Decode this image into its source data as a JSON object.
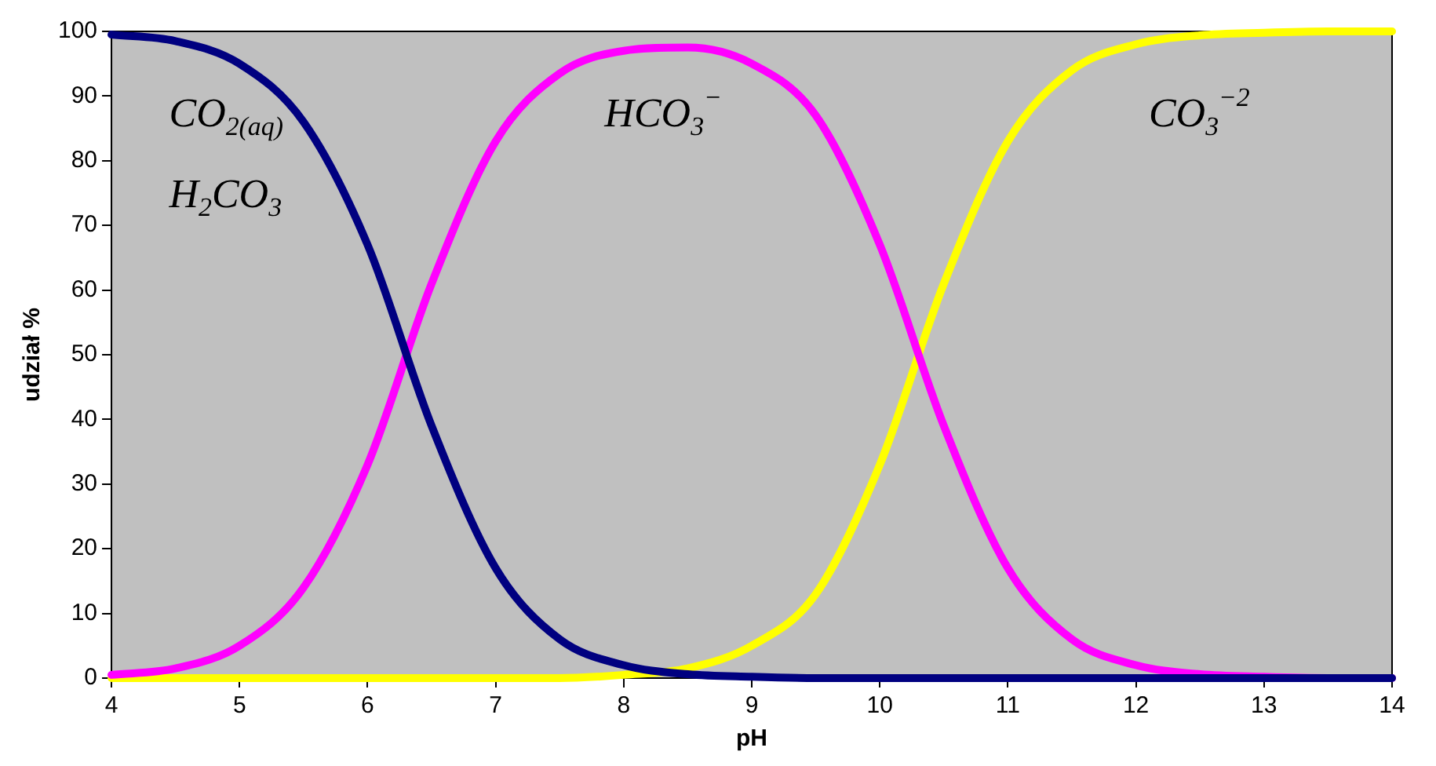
{
  "chart_data": {
    "type": "line",
    "xlabel": "pH",
    "ylabel": "udział %",
    "x": [
      4,
      4.5,
      5,
      5.5,
      6,
      6.5,
      7,
      7.5,
      8,
      8.5,
      9,
      9.5,
      10,
      10.5,
      11,
      11.5,
      12,
      12.5,
      13,
      13.5,
      14
    ],
    "series": [
      {
        "color": "#000080",
        "values": [
          99.5,
          98.5,
          95,
          86,
          67,
          39,
          17,
          6,
          2,
          0.6,
          0.2,
          0,
          0,
          0,
          0,
          0,
          0,
          0,
          0,
          0,
          0
        ]
      },
      {
        "color": "#ff00ff",
        "values": [
          0.5,
          1.5,
          5,
          14,
          33,
          61,
          83,
          93.5,
          97,
          97.5,
          95,
          87,
          67,
          39,
          17,
          6,
          2,
          0.6,
          0.2,
          0,
          0
        ]
      },
      {
        "color": "#ffff00",
        "values": [
          0,
          0,
          0,
          0,
          0,
          0,
          0,
          0,
          0.5,
          1.5,
          5,
          13,
          33,
          61,
          83,
          94,
          98,
          99.4,
          99.8,
          100,
          100
        ]
      }
    ],
    "annotations": [
      "CO$_{2(aq)}$",
      "H$_{2}$CO$_{3}$",
      "HCO$_{3}$$^{−}$",
      "CO$_{3}$$^{−2}$"
    ],
    "xlim": [
      4,
      14
    ],
    "xticks": [
      4,
      5,
      6,
      7,
      8,
      9,
      10,
      11,
      12,
      13,
      14
    ],
    "ylim": [
      0,
      100
    ],
    "yticks": [
      0,
      10,
      20,
      30,
      40,
      50,
      60,
      70,
      80,
      90,
      100
    ],
    "grid": false,
    "legend": false,
    "marker": "none"
  }
}
